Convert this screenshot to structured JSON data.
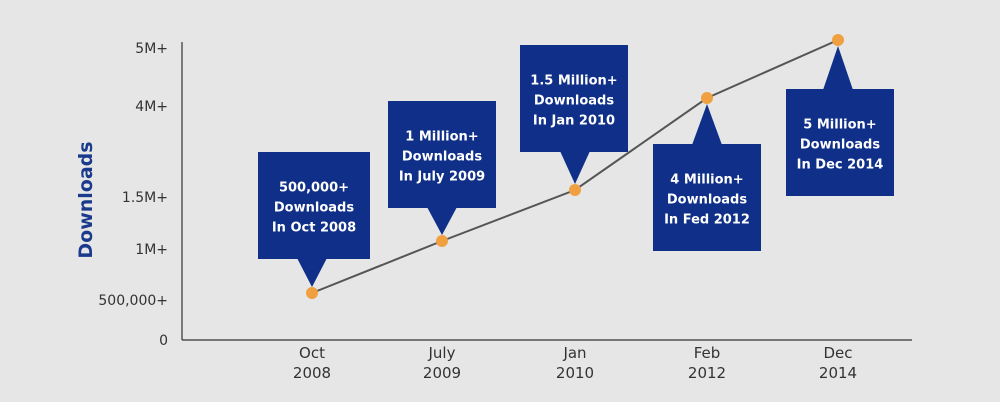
{
  "chart_data": {
    "type": "line",
    "ylabel": "Downloads",
    "x": [
      "Oct 2008",
      "July 2009",
      "Jan 2010",
      "Feb 2012",
      "Dec 2014"
    ],
    "x_ticks": [
      [
        "Oct",
        "2008"
      ],
      [
        "July",
        "2009"
      ],
      [
        "Jan",
        "2010"
      ],
      [
        "Feb",
        "2012"
      ],
      [
        "Dec",
        "2014"
      ]
    ],
    "values": [
      500000,
      1000000,
      1500000,
      4000000,
      5000000
    ],
    "y_ticks": [
      "0",
      "500,000+",
      "1M+",
      "1.5M+",
      "4M+",
      "5M+"
    ],
    "grid": false,
    "annotations": [
      [
        "500,000+",
        "Downloads",
        "In Oct 2008"
      ],
      [
        "1 Million+",
        "Downloads",
        "In July 2009"
      ],
      [
        "1.5 Million+",
        "Downloads",
        "In Jan 2010"
      ],
      [
        "4 Million+",
        "Downloads",
        "In Fed 2012"
      ],
      [
        "5 Million+",
        "Downloads",
        "In Dec 2014"
      ]
    ]
  },
  "colors": {
    "background": "#e6e6e6",
    "line": "#555555",
    "marker": "#f0a040",
    "callout": "#0f2f88",
    "axis": "#333333",
    "ylabel": "#1a3a8c"
  }
}
